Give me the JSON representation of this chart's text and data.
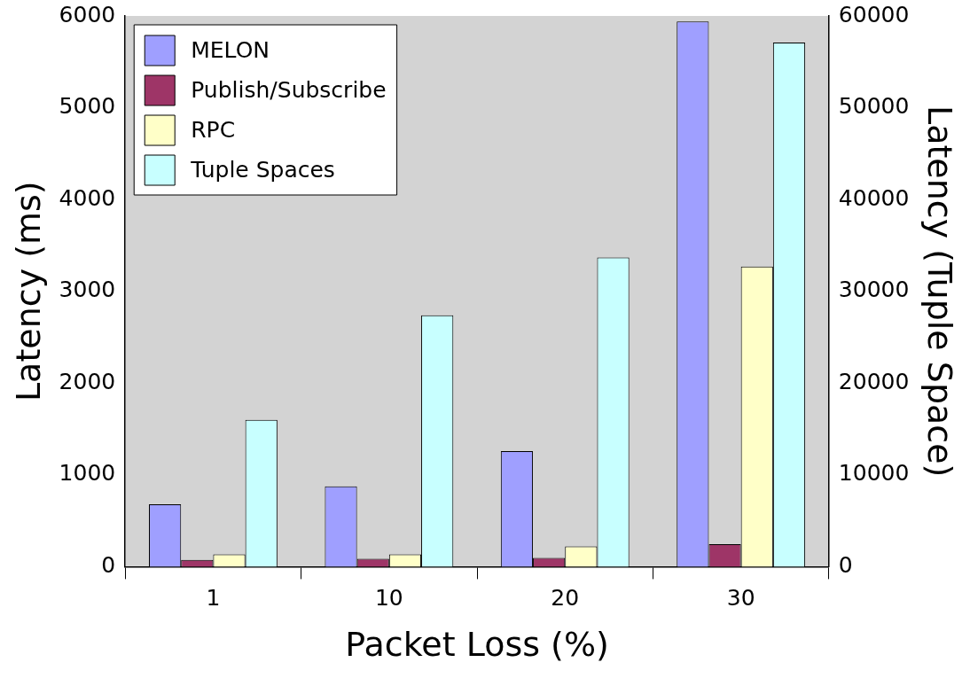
{
  "chart_data": {
    "type": "bar",
    "xlabel": "Packet Loss (%)",
    "ylabel": "Latency (ms)",
    "y2label": "Latency (Tuple Space)",
    "categories": [
      "1",
      "10",
      "20",
      "30"
    ],
    "series": [
      {
        "name": "MELON",
        "color": "#9f9fff",
        "values": [
          680,
          875,
          1260,
          5940
        ]
      },
      {
        "name": "Publish/Subscribe",
        "color": "#9e3567",
        "values": [
          75,
          85,
          95,
          245
        ]
      },
      {
        "name": "RPC",
        "color": "#ffffc8",
        "values": [
          135,
          135,
          220,
          3270
        ]
      },
      {
        "name": "Tuple Spaces",
        "color": "#c8ffff",
        "axis": "y2",
        "values": [
          16000,
          27400,
          33700,
          57100
        ]
      }
    ],
    "ylim": [
      0,
      6000
    ],
    "yticks": [
      0,
      1000,
      2000,
      3000,
      4000,
      5000,
      6000
    ],
    "y2lim": [
      0,
      60000
    ],
    "y2ticks": [
      0,
      10000,
      20000,
      30000,
      40000,
      50000,
      60000
    ],
    "grid": false,
    "legend": "top left"
  }
}
